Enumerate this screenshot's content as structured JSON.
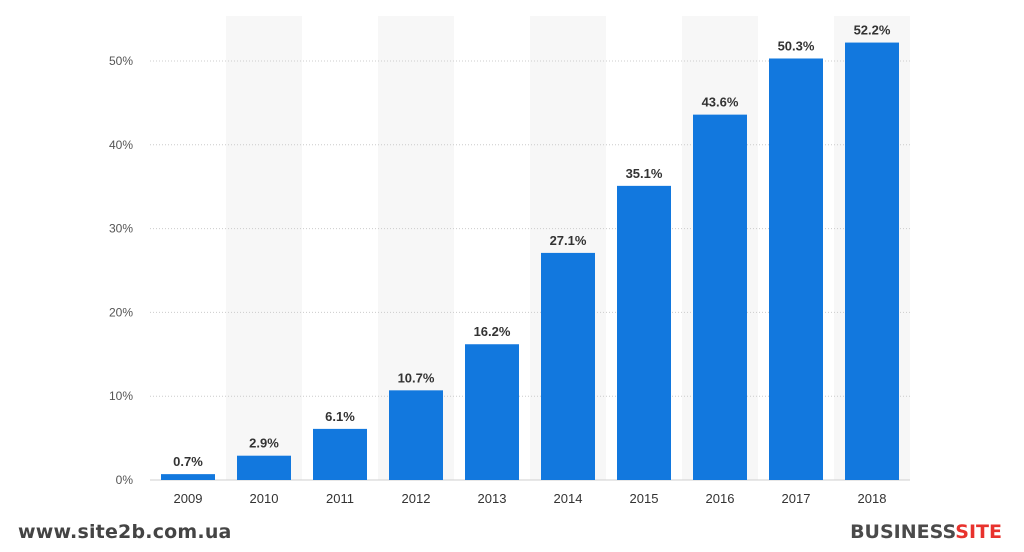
{
  "chart_data": {
    "type": "bar",
    "categories": [
      "2009",
      "2010",
      "2011",
      "2012",
      "2013",
      "2014",
      "2015",
      "2016",
      "2017",
      "2018"
    ],
    "values": [
      0.7,
      2.9,
      6.1,
      10.7,
      16.2,
      27.1,
      35.1,
      43.6,
      50.3,
      52.2
    ],
    "value_labels": [
      "0.7%",
      "2.9%",
      "6.1%",
      "10.7%",
      "16.2%",
      "27.1%",
      "35.1%",
      "43.6%",
      "50.3%",
      "52.2%"
    ],
    "yticks": [
      0,
      10,
      20,
      30,
      40,
      50
    ],
    "ytick_labels": [
      "0%",
      "10%",
      "20%",
      "30%",
      "40%",
      "50%"
    ],
    "ylim": [
      0,
      55
    ],
    "grid": true,
    "bar_color": "#1278de",
    "band_color": "#f7f7f7",
    "title": "",
    "xlabel": "",
    "ylabel": ""
  },
  "footer": {
    "website": "www.site2b.com.ua",
    "brand_part1": "BUSINESS",
    "brand_part2": "SITE"
  }
}
